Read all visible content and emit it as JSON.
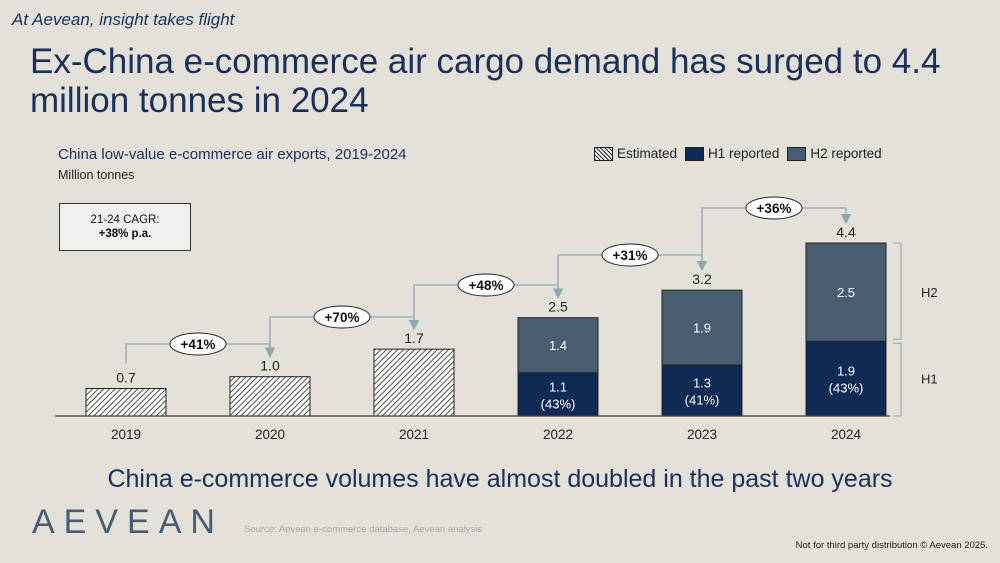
{
  "tagline": "At Aevean, insight takes flight",
  "title": "Ex-China e-commerce air cargo demand has surged to 4.4 million tonnes in 2024",
  "cagr": {
    "label": "21-24 CAGR:",
    "value": "+38% p.a."
  },
  "legend": {
    "estimated": "Estimated",
    "h1": "H1 reported",
    "h2": "H2 reported"
  },
  "takeaway": "China e-commerce volumes have almost doubled in the past two years",
  "logo": "AEVEAN",
  "source": "Source: Aevean e-commerce database, Aevean analysis",
  "notice": "Not for third party distribution © Aevean 2025.",
  "colors": {
    "h1": "#0e2a55",
    "h2": "#485e70",
    "connector": "#8fa8b0"
  },
  "chart_data": {
    "type": "bar",
    "title": "China low-value e-commerce air exports, 2019-2024",
    "ylabel": "Million tonnes",
    "categories": [
      "2019",
      "2020",
      "2021",
      "2022",
      "2023",
      "2024"
    ],
    "totals": [
      "0.7",
      "1.0",
      "1.7",
      "2.5",
      "3.2",
      "4.4"
    ],
    "estimated": [
      0.7,
      1.0,
      1.7,
      null,
      null,
      null
    ],
    "series": [
      {
        "name": "H1 reported",
        "values": [
          null,
          null,
          null,
          1.1,
          1.3,
          1.9
        ],
        "labels": [
          "",
          "",
          "",
          "1.1",
          "1.3",
          "1.9"
        ],
        "shares": [
          "",
          "",
          "",
          "(43%)",
          "(41%)",
          "(43%)"
        ]
      },
      {
        "name": "H2 reported",
        "values": [
          null,
          null,
          null,
          1.4,
          1.9,
          2.5
        ],
        "labels": [
          "",
          "",
          "",
          "1.4",
          "1.9",
          "2.5"
        ]
      }
    ],
    "growth": [
      "+41%",
      "+70%",
      "+48%",
      "+31%",
      "+36%"
    ],
    "bracket_labels": [
      "H1",
      "H2"
    ],
    "ylim": [
      0,
      4.4
    ]
  }
}
